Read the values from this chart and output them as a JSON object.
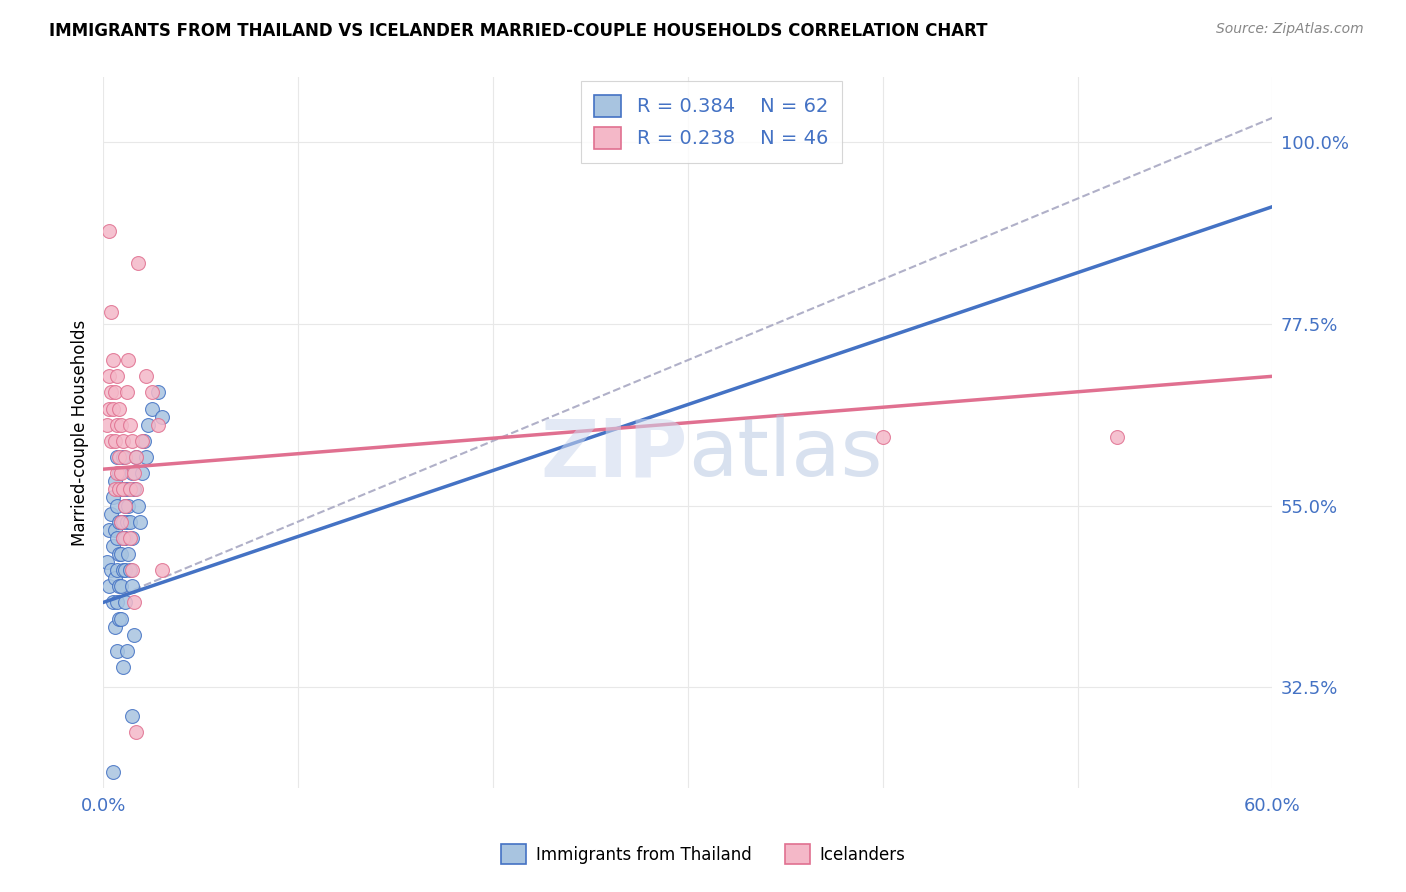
{
  "title": "IMMIGRANTS FROM THAILAND VS ICELANDER MARRIED-COUPLE HOUSEHOLDS CORRELATION CHART",
  "source": "Source: ZipAtlas.com",
  "ylabel": "Married-couple Households",
  "xlim": [
    0.0,
    0.6
  ],
  "ylim": [
    0.2,
    1.08
  ],
  "yticks": [
    0.325,
    0.55,
    0.775,
    1.0
  ],
  "ytick_labels": [
    "32.5%",
    "55.0%",
    "77.5%",
    "100.0%"
  ],
  "xticks": [
    0.0,
    0.1,
    0.2,
    0.3,
    0.4,
    0.5,
    0.6
  ],
  "xtick_labels": [
    "0.0%",
    "",
    "",
    "",
    "",
    "",
    "60.0%"
  ],
  "blue_R": 0.384,
  "blue_N": 62,
  "pink_R": 0.238,
  "pink_N": 46,
  "blue_color": "#a8c4e0",
  "pink_color": "#f4b8c8",
  "blue_line_color": "#4472c4",
  "pink_line_color": "#e07090",
  "dashed_line_color": "#b0b0c8",
  "tick_label_color": "#4472c4",
  "blue_line_x0": 0.0,
  "blue_line_y0": 0.43,
  "blue_line_x1": 0.6,
  "blue_line_y1": 0.92,
  "pink_line_x0": 0.0,
  "pink_line_y0": 0.595,
  "pink_line_x1": 0.6,
  "pink_line_y1": 0.71,
  "dash_line_x0": 0.0,
  "dash_line_y0": 0.43,
  "dash_line_x1": 0.6,
  "dash_line_y1": 1.03,
  "blue_scatter": [
    [
      0.002,
      0.48
    ],
    [
      0.003,
      0.52
    ],
    [
      0.003,
      0.45
    ],
    [
      0.004,
      0.54
    ],
    [
      0.004,
      0.47
    ],
    [
      0.005,
      0.56
    ],
    [
      0.005,
      0.5
    ],
    [
      0.005,
      0.43
    ],
    [
      0.006,
      0.58
    ],
    [
      0.006,
      0.52
    ],
    [
      0.006,
      0.46
    ],
    [
      0.006,
      0.4
    ],
    [
      0.007,
      0.61
    ],
    [
      0.007,
      0.55
    ],
    [
      0.007,
      0.51
    ],
    [
      0.007,
      0.47
    ],
    [
      0.007,
      0.43
    ],
    [
      0.008,
      0.59
    ],
    [
      0.008,
      0.53
    ],
    [
      0.008,
      0.49
    ],
    [
      0.008,
      0.45
    ],
    [
      0.008,
      0.41
    ],
    [
      0.009,
      0.57
    ],
    [
      0.009,
      0.53
    ],
    [
      0.009,
      0.49
    ],
    [
      0.009,
      0.45
    ],
    [
      0.009,
      0.41
    ],
    [
      0.01,
      0.61
    ],
    [
      0.01,
      0.57
    ],
    [
      0.01,
      0.53
    ],
    [
      0.01,
      0.51
    ],
    [
      0.01,
      0.47
    ],
    [
      0.011,
      0.55
    ],
    [
      0.011,
      0.51
    ],
    [
      0.011,
      0.47
    ],
    [
      0.011,
      0.43
    ],
    [
      0.012,
      0.57
    ],
    [
      0.012,
      0.53
    ],
    [
      0.013,
      0.55
    ],
    [
      0.013,
      0.49
    ],
    [
      0.014,
      0.53
    ],
    [
      0.014,
      0.47
    ],
    [
      0.015,
      0.59
    ],
    [
      0.015,
      0.51
    ],
    [
      0.015,
      0.45
    ],
    [
      0.016,
      0.57
    ],
    [
      0.016,
      0.39
    ],
    [
      0.017,
      0.61
    ],
    [
      0.018,
      0.55
    ],
    [
      0.019,
      0.53
    ],
    [
      0.02,
      0.59
    ],
    [
      0.021,
      0.63
    ],
    [
      0.022,
      0.61
    ],
    [
      0.023,
      0.65
    ],
    [
      0.025,
      0.67
    ],
    [
      0.028,
      0.69
    ],
    [
      0.03,
      0.66
    ],
    [
      0.015,
      0.29
    ],
    [
      0.005,
      0.22
    ],
    [
      0.01,
      0.35
    ],
    [
      0.007,
      0.37
    ],
    [
      0.012,
      0.37
    ]
  ],
  "pink_scatter": [
    [
      0.002,
      0.65
    ],
    [
      0.003,
      0.71
    ],
    [
      0.003,
      0.67
    ],
    [
      0.004,
      0.69
    ],
    [
      0.004,
      0.63
    ],
    [
      0.005,
      0.73
    ],
    [
      0.005,
      0.67
    ],
    [
      0.006,
      0.69
    ],
    [
      0.006,
      0.63
    ],
    [
      0.006,
      0.57
    ],
    [
      0.007,
      0.71
    ],
    [
      0.007,
      0.65
    ],
    [
      0.007,
      0.59
    ],
    [
      0.008,
      0.67
    ],
    [
      0.008,
      0.61
    ],
    [
      0.008,
      0.57
    ],
    [
      0.009,
      0.65
    ],
    [
      0.009,
      0.59
    ],
    [
      0.009,
      0.53
    ],
    [
      0.01,
      0.63
    ],
    [
      0.01,
      0.57
    ],
    [
      0.01,
      0.51
    ],
    [
      0.011,
      0.61
    ],
    [
      0.011,
      0.55
    ],
    [
      0.012,
      0.69
    ],
    [
      0.013,
      0.73
    ],
    [
      0.014,
      0.65
    ],
    [
      0.014,
      0.57
    ],
    [
      0.014,
      0.51
    ],
    [
      0.015,
      0.63
    ],
    [
      0.015,
      0.47
    ],
    [
      0.016,
      0.59
    ],
    [
      0.016,
      0.43
    ],
    [
      0.017,
      0.61
    ],
    [
      0.017,
      0.57
    ],
    [
      0.02,
      0.63
    ],
    [
      0.022,
      0.71
    ],
    [
      0.025,
      0.69
    ],
    [
      0.028,
      0.65
    ],
    [
      0.03,
      0.47
    ],
    [
      0.018,
      0.85
    ],
    [
      0.003,
      0.89
    ],
    [
      0.004,
      0.79
    ],
    [
      0.4,
      0.635
    ],
    [
      0.52,
      0.635
    ],
    [
      0.017,
      0.27
    ]
  ],
  "background_color": "#ffffff",
  "grid_color": "#e8e8e8"
}
